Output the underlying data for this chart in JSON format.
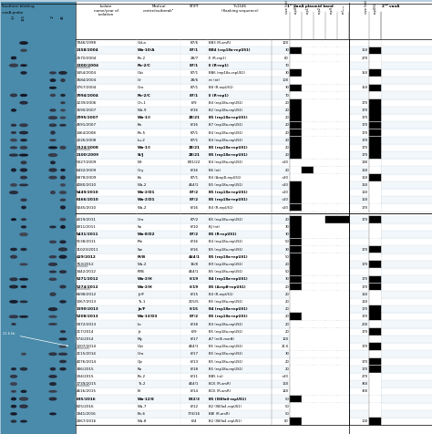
{
  "rows": [
    {
      "isolate": "7946/1998",
      "bold": false,
      "underline": false,
      "center": "Gd-a",
      "center_bold": false,
      "stpt": "87/6",
      "stpt_bold": false,
      "tn": "BB3 (R-arsR)",
      "tn_bold": false,
      "size1": "120",
      "rep_pattern": [
        0,
        0,
        0,
        0,
        0
      ],
      "size2": "",
      "rep2": 0
    },
    {
      "isolate": "2158/2004",
      "bold": true,
      "underline": false,
      "center": "Wa-10/A",
      "center_bold": true,
      "stpt": "87/1",
      "stpt_bold": true,
      "tn": "BB4 (rep18a-repUS1)",
      "tn_bold": true,
      "size1": "30",
      "rep_pattern": [
        1,
        0,
        0,
        0,
        0
      ],
      "size2": "150",
      "rep2": 1
    },
    {
      "isolate": "2570/2004",
      "bold": false,
      "underline": false,
      "center": "Po-2",
      "center_bold": false,
      "stpt": "28/7",
      "stpt_bold": false,
      "tn": "E (R-rep1)",
      "tn_bold": false,
      "size1": "80",
      "rep_pattern": [
        0,
        0,
        0,
        0,
        0
      ],
      "size2": "270",
      "rep2": 0
    },
    {
      "isolate": "3300/2004",
      "bold": true,
      "underline": true,
      "center": "Po-2/C",
      "center_bold": true,
      "stpt": "87/1",
      "stpt_bold": true,
      "tn": "E (R-rep1)",
      "tn_bold": true,
      "size1": "70",
      "rep_pattern": [
        0,
        0,
        0,
        0,
        0
      ],
      "size2": "",
      "rep2": 0
    },
    {
      "isolate": "3454/2004",
      "bold": false,
      "underline": false,
      "center": "Ost",
      "center_bold": false,
      "stpt": "87/1",
      "stpt_bold": false,
      "tn": "BB6 (rep18a-repUS1)",
      "tn_bold": false,
      "size1": "30",
      "rep_pattern": [
        1,
        0,
        0,
        0,
        0
      ],
      "size2": "150",
      "rep2": 1
    },
    {
      "isolate": "3584/2004",
      "bold": false,
      "underline": false,
      "center": "Gr",
      "center_bold": false,
      "stpt": "28/6",
      "stpt_bold": false,
      "tn": "nt (nt)",
      "tn_bold": false,
      "size1": "100",
      "rep_pattern": [
        0,
        0,
        0,
        0,
        0
      ],
      "size2": "",
      "rep2": 0
    },
    {
      "isolate": "3767/2004",
      "bold": false,
      "underline": false,
      "center": "Gro",
      "center_bold": false,
      "stpt": "87/1",
      "stpt_bold": false,
      "tn": "B8 (R-repUS1)",
      "tn_bold": false,
      "size1": "30",
      "rep_pattern": [
        1,
        0,
        0,
        0,
        0
      ],
      "size2": "150",
      "rep2": 1
    },
    {
      "isolate": "3994/2004",
      "bold": true,
      "underline": false,
      "center": "Po-2/C",
      "center_bold": true,
      "stpt": "87/1",
      "stpt_bold": true,
      "tn": "E (R-rep1)",
      "tn_bold": true,
      "size1": "70",
      "rep_pattern": [
        0,
        0,
        0,
        0,
        0
      ],
      "size2": "",
      "rep2": 0
    },
    {
      "isolate": "3239/2006",
      "bold": false,
      "underline": false,
      "center": "On-1",
      "center_bold": false,
      "stpt": "6/9",
      "stpt_bold": false,
      "tn": "B4 (rep18a-repUS1)",
      "tn_bold": false,
      "size1": "20",
      "rep_pattern": [
        1,
        0,
        0,
        0,
        0
      ],
      "size2": "170",
      "rep2": 1
    },
    {
      "isolate": "1590/2007",
      "bold": false,
      "underline": false,
      "center": "Wa-9",
      "center_bold": false,
      "stpt": "6/16",
      "stpt_bold": false,
      "tn": "B2 (rep18a-repUS1)",
      "tn_bold": false,
      "size1": "20",
      "rep_pattern": [
        1,
        0,
        0,
        0,
        0
      ],
      "size2": "170",
      "rep2": 1
    },
    {
      "isolate": "2995/2007",
      "bold": true,
      "underline": false,
      "center": "Wa-1/I",
      "center_bold": true,
      "stpt": "28/21",
      "stpt_bold": true,
      "tn": "B5 (rep18a-repUS1)",
      "tn_bold": true,
      "size1": "20",
      "rep_pattern": [
        1,
        0,
        0,
        0,
        0
      ],
      "size2": "170",
      "rep2": 1
    },
    {
      "isolate": "4591/2007",
      "bold": false,
      "underline": false,
      "center": "Ka",
      "center_bold": false,
      "stpt": "6/16",
      "stpt_bold": false,
      "tn": "B7 (rep18a-repUS1)",
      "tn_bold": false,
      "size1": "20",
      "rep_pattern": [
        1,
        0,
        0,
        0,
        0
      ],
      "size2": "170",
      "rep2": 1
    },
    {
      "isolate": "1464/2008",
      "bold": false,
      "underline": false,
      "center": "Po-5",
      "center_bold": false,
      "stpt": "87/1",
      "stpt_bold": false,
      "tn": "B4 (rep18a-repUS1)",
      "tn_bold": false,
      "size1": "20",
      "rep_pattern": [
        1,
        0,
        0,
        0,
        0
      ],
      "size2": "170",
      "rep2": 1
    },
    {
      "isolate": "2226/2008",
      "bold": false,
      "underline": false,
      "center": "Lu-2",
      "center_bold": false,
      "stpt": "87/1",
      "stpt_bold": false,
      "tn": "B4 (rep18a-repUS1)",
      "tn_bold": false,
      "size1": "20",
      "rep_pattern": [
        1,
        0,
        0,
        0,
        0
      ],
      "size2": "170",
      "rep2": 1
    },
    {
      "isolate": "3124/2008",
      "bold": true,
      "underline": true,
      "center": "Wa-1/I",
      "center_bold": true,
      "stpt": "28/21",
      "stpt_bold": true,
      "tn": "B5 (rep18a-repUS1)",
      "tn_bold": true,
      "size1": "20",
      "rep_pattern": [
        1,
        0,
        0,
        0,
        0
      ],
      "size2": "170",
      "rep2": 1
    },
    {
      "isolate": "2100/2009",
      "bold": true,
      "underline": false,
      "center": "Si/J",
      "center_bold": true,
      "stpt": "28/21",
      "stpt_bold": true,
      "tn": "B5 (rep18a-repUS1)",
      "tn_bold": true,
      "size1": "20",
      "rep_pattern": [
        1,
        0,
        0,
        0,
        0
      ],
      "size2": "170",
      "rep2": 1
    },
    {
      "isolate": "5027/2009",
      "bold": false,
      "underline": false,
      "center": "Wr",
      "center_bold": false,
      "stpt": "831/22",
      "stpt_bold": false,
      "tn": "B4 (rep18a-repUS1)",
      "tn_bold": false,
      "size1": "<20",
      "rep_pattern": [
        0,
        0,
        0,
        0,
        0
      ],
      "size2": "190",
      "rep2": 0
    },
    {
      "isolate": "6432/2009",
      "bold": false,
      "underline": false,
      "center": "Gry",
      "center_bold": false,
      "stpt": "6/16",
      "stpt_bold": false,
      "tn": "B6 (nt)",
      "tn_bold": false,
      "size1": "20",
      "rep_pattern": [
        0,
        1,
        0,
        0,
        0
      ],
      "size2": "160",
      "rep2": 0
    },
    {
      "isolate": "6878/2009",
      "bold": false,
      "underline": false,
      "center": "Ka",
      "center_bold": false,
      "stpt": "87/1",
      "stpt_bold": false,
      "tn": "B4 (ΔrepB-repUS1)",
      "tn_bold": false,
      "size1": "<20",
      "rep_pattern": [
        0,
        0,
        0,
        0,
        0
      ],
      "size2": "160",
      "rep2": 1
    },
    {
      "isolate": "4080/2010",
      "bold": false,
      "underline": false,
      "center": "Wa-2",
      "center_bold": false,
      "stpt": "464/1",
      "stpt_bold": false,
      "tn": "B5 (rep18a-repUS1)",
      "tn_bold": false,
      "size1": "<20",
      "rep_pattern": [
        1,
        0,
        0,
        0,
        0
      ],
      "size2": "160",
      "rep2": 0
    },
    {
      "isolate": "5449/2010",
      "bold": true,
      "underline": false,
      "center": "Wa-2/D1",
      "center_bold": true,
      "stpt": "87/2",
      "stpt_bold": true,
      "tn": "B5 (rep18a-repUS1)",
      "tn_bold": true,
      "size1": "<20",
      "rep_pattern": [
        1,
        0,
        0,
        0,
        0
      ],
      "size2": "160",
      "rep2": 0
    },
    {
      "isolate": "6166/2010",
      "bold": true,
      "underline": false,
      "center": "Wa-2/D1",
      "center_bold": true,
      "stpt": "87/2",
      "stpt_bold": true,
      "tn": "B5 (rep18a-repUS1)",
      "tn_bold": true,
      "size1": "<20",
      "rep_pattern": [
        1,
        0,
        0,
        0,
        0
      ],
      "size2": "160",
      "rep2": 0
    },
    {
      "isolate": "9245/2010",
      "bold": false,
      "underline": false,
      "center": "Wa-2",
      "center_bold": false,
      "stpt": "6/16",
      "stpt_bold": false,
      "tn": "B4 (R-repUS1)",
      "tn_bold": false,
      "size1": "<20",
      "rep_pattern": [
        1,
        0,
        0,
        0,
        0
      ],
      "size2": "170",
      "rep2": 0
    },
    {
      "isolate": "4319/2011",
      "bold": false,
      "underline": false,
      "center": "Gro",
      "center_bold": false,
      "stpt": "87/2",
      "stpt_bold": false,
      "tn": "B5 (rep18a-repUS1)",
      "tn_bold": false,
      "size1": "20",
      "rep_pattern": [
        1,
        0,
        0,
        1,
        1
      ],
      "size2": "170",
      "rep2": 1
    },
    {
      "isolate": "4911/2011",
      "bold": false,
      "underline": false,
      "center": "So",
      "center_bold": false,
      "stpt": "6/10",
      "stpt_bold": false,
      "tn": "BJ (nt)",
      "tn_bold": false,
      "size1": "30",
      "rep_pattern": [
        1,
        0,
        0,
        0,
        0
      ],
      "size2": "",
      "rep2": 0
    },
    {
      "isolate": "5431/2011",
      "bold": true,
      "underline": false,
      "center": "Wa-8/D2",
      "center_bold": true,
      "stpt": "87/2",
      "stpt_bold": true,
      "tn": "B5 (R-repUS1)",
      "tn_bold": true,
      "size1": "30",
      "rep_pattern": [
        1,
        0,
        0,
        0,
        0
      ],
      "size2": "",
      "rep2": 0
    },
    {
      "isolate": "9138/2011",
      "bold": false,
      "underline": false,
      "center": "Ple",
      "center_bold": false,
      "stpt": "6/16",
      "stpt_bold": false,
      "tn": "B4 (rep18a-repUS1)",
      "tn_bold": false,
      "size1": "50",
      "rep_pattern": [
        1,
        0,
        0,
        0,
        0
      ],
      "size2": "",
      "rep2": 0
    },
    {
      "isolate": "11023/2011",
      "bold": false,
      "underline": false,
      "center": "Sw",
      "center_bold": false,
      "stpt": "6/16",
      "stpt_bold": false,
      "tn": "B5 (rep18a-repUS1)",
      "tn_bold": false,
      "size1": "30",
      "rep_pattern": [
        1,
        0,
        0,
        0,
        0
      ],
      "size2": "170",
      "rep2": 1
    },
    {
      "isolate": "429/2012",
      "bold": true,
      "underline": false,
      "center": "Pl/B",
      "center_bold": true,
      "stpt": "464/1",
      "stpt_bold": true,
      "tn": "B5 (rep18a-repUS1)",
      "tn_bold": true,
      "size1": "50",
      "rep_pattern": [
        1,
        0,
        0,
        0,
        0
      ],
      "size2": "",
      "rep2": 0
    },
    {
      "isolate": "753/2012",
      "bold": false,
      "underline": true,
      "center": "Wa-2",
      "center_bold": false,
      "stpt": "16/8",
      "stpt_bold": false,
      "tn": "B9 (rep18a-repUS1)",
      "tn_bold": false,
      "size1": "20",
      "rep_pattern": [
        1,
        0,
        0,
        0,
        0
      ],
      "size2": "170",
      "rep2": 1
    },
    {
      "isolate": "3442/2012",
      "bold": false,
      "underline": false,
      "center": "Pl/B",
      "center_bold": false,
      "stpt": "464/1",
      "stpt_bold": false,
      "tn": "B5 (rep18a-repUS1)",
      "tn_bold": false,
      "size1": "50",
      "rep_pattern": [
        1,
        0,
        0,
        0,
        0
      ],
      "size2": "",
      "rep2": 0
    },
    {
      "isolate": "5271/2012",
      "bold": true,
      "underline": false,
      "center": "Wa-2/H",
      "center_bold": true,
      "stpt": "6/19",
      "stpt_bold": true,
      "tn": "B4 (rep18a-repUS1)",
      "tn_bold": true,
      "size1": "30",
      "rep_pattern": [
        1,
        0,
        0,
        0,
        0
      ],
      "size2": "170",
      "rep2": 1
    },
    {
      "isolate": "5274/2012",
      "bold": true,
      "underline": true,
      "center": "Wa-2/H",
      "center_bold": true,
      "stpt": "6/19",
      "stpt_bold": true,
      "tn": "B5 (ΔrepB-repUS1)",
      "tn_bold": true,
      "size1": "20",
      "rep_pattern": [
        1,
        0,
        0,
        0,
        0
      ],
      "size2": "170",
      "rep2": 1
    },
    {
      "isolate": "6698/2012",
      "bold": false,
      "underline": false,
      "center": "Je/F",
      "center_bold": false,
      "stpt": "6/15",
      "stpt_bold": false,
      "tn": "B4 (R-repUS1)",
      "tn_bold": false,
      "size1": "20",
      "rep_pattern": [
        0,
        0,
        0,
        0,
        0
      ],
      "size2": "160",
      "rep2": 0
    },
    {
      "isolate": "1067/2013",
      "bold": false,
      "underline": false,
      "center": "To-1",
      "center_bold": false,
      "stpt": "215/5",
      "stpt_bold": false,
      "tn": "B5 (rep18a-repUS1)",
      "tn_bold": false,
      "size1": "20",
      "rep_pattern": [
        0,
        0,
        0,
        0,
        0
      ],
      "size2": "160",
      "rep2": 0
    },
    {
      "isolate": "1390/2013",
      "bold": true,
      "underline": false,
      "center": "Je/F",
      "center_bold": true,
      "stpt": "6/15",
      "stpt_bold": true,
      "tn": "B4 (rep18a-repUS1)",
      "tn_bold": true,
      "size1": "20",
      "rep_pattern": [
        0,
        0,
        0,
        0,
        0
      ],
      "size2": "170",
      "rep2": 1
    },
    {
      "isolate": "5208/2013",
      "bold": true,
      "underline": false,
      "center": "Wa-13/D3",
      "center_bold": true,
      "stpt": "87/2",
      "stpt_bold": true,
      "tn": "B5 (rep18a-repUS1)",
      "tn_bold": true,
      "size1": "20",
      "rep_pattern": [
        1,
        0,
        0,
        0,
        0
      ],
      "size2": "170",
      "rep2": 1
    },
    {
      "isolate": "5972/2013",
      "bold": false,
      "underline": false,
      "center": "Lo",
      "center_bold": false,
      "stpt": "6/18",
      "stpt_bold": false,
      "tn": "B4 (rep18a-repUS1)",
      "tn_bold": false,
      "size1": "20",
      "rep_pattern": [
        0,
        0,
        0,
        0,
        0
      ],
      "size2": "200",
      "rep2": 0
    },
    {
      "isolate": "217/2014",
      "bold": false,
      "underline": false,
      "center": "Je",
      "center_bold": false,
      "stpt": "6/9",
      "stpt_bold": false,
      "tn": "B5 (rep18a-repUS1)",
      "tn_bold": false,
      "size1": "20",
      "rep_pattern": [
        0,
        0,
        0,
        0,
        0
      ],
      "size2": "170",
      "rep2": 1
    },
    {
      "isolate": "574/2014",
      "bold": false,
      "underline": false,
      "center": "My",
      "center_bold": false,
      "stpt": "6/17",
      "stpt_bold": false,
      "tn": "A7 (relE-merA)",
      "tn_bold": false,
      "size1": "120",
      "rep_pattern": [
        0,
        0,
        0,
        0,
        0
      ],
      "size2": "",
      "rep2": 0
    },
    {
      "isolate": "1207/2014",
      "bold": false,
      "underline": true,
      "center": "Ost",
      "center_bold": false,
      "stpt": "464/1",
      "stpt_bold": false,
      "tn": "B5 (rep18a-repUS1)",
      "tn_bold": false,
      "size1": "21.6",
      "rep_pattern": [
        0,
        0,
        0,
        0,
        0
      ],
      "size2": "170",
      "rep2": 1
    },
    {
      "isolate": "2115/2014",
      "bold": false,
      "underline": false,
      "center": "Gro",
      "center_bold": false,
      "stpt": "6/17",
      "stpt_bold": false,
      "tn": "B5 (rep18a-repUS1)",
      "tn_bold": false,
      "size1": "30",
      "rep_pattern": [
        0,
        0,
        0,
        0,
        0
      ],
      "size2": "",
      "rep2": 0
    },
    {
      "isolate": "4076/2014",
      "bold": false,
      "underline": false,
      "center": "Op",
      "center_bold": false,
      "stpt": "6/13",
      "stpt_bold": false,
      "tn": "B5 (rep18a-repUS1)",
      "tn_bold": false,
      "size1": "20",
      "rep_pattern": [
        0,
        0,
        0,
        0,
        0
      ],
      "size2": "170",
      "rep2": 1
    },
    {
      "isolate": "306/2015",
      "bold": false,
      "underline": false,
      "center": "Rz",
      "center_bold": false,
      "stpt": "6/18",
      "stpt_bold": false,
      "tn": "B5 (rep18a-repUS1)",
      "tn_bold": false,
      "size1": "20",
      "rep_pattern": [
        0,
        0,
        0,
        0,
        0
      ],
      "size2": "170",
      "rep2": 1
    },
    {
      "isolate": "334/2015",
      "bold": false,
      "underline": false,
      "center": "Po-2",
      "center_bold": false,
      "stpt": "6/11",
      "stpt_bold": false,
      "tn": "BB5 (nt)",
      "tn_bold": false,
      "size1": "<20",
      "rep_pattern": [
        0,
        0,
        0,
        0,
        0
      ],
      "size2": "270",
      "rep2": 0
    },
    {
      "isolate": "1739/2015",
      "bold": false,
      "underline": true,
      "center": "To-2",
      "center_bold": false,
      "stpt": "464/1",
      "stpt_bold": false,
      "tn": "BC6 (R-arsR)",
      "tn_bold": false,
      "size1": "160",
      "rep_pattern": [
        0,
        0,
        0,
        0,
        0
      ],
      "size2": "360",
      "rep2": 0
    },
    {
      "isolate": "4616/2015",
      "bold": false,
      "underline": false,
      "center": "El",
      "center_bold": false,
      "stpt": "6/14",
      "stpt_bold": false,
      "tn": "BC6 (R-arsR)",
      "tn_bold": false,
      "size1": "140",
      "rep_pattern": [
        0,
        0,
        0,
        0,
        0
      ],
      "size2": "300",
      "rep2": 0
    },
    {
      "isolate": "635/2016",
      "bold": true,
      "underline": false,
      "center": "Wa-12/E",
      "center_bold": true,
      "stpt": "832/3",
      "stpt_bold": true,
      "tn": "B5 (ISEfa4-repUS1)",
      "tn_bold": true,
      "size1": "50",
      "rep_pattern": [
        1,
        0,
        0,
        0,
        0
      ],
      "size2": "",
      "rep2": 0
    },
    {
      "isolate": "825/2016",
      "bold": false,
      "underline": false,
      "center": "Wa-7",
      "center_bold": false,
      "stpt": "6/12",
      "stpt_bold": false,
      "tn": "B2 (ISEfa4-repUS1)",
      "tn_bold": false,
      "size1": "50",
      "rep_pattern": [
        0,
        0,
        0,
        0,
        0
      ],
      "size2": "",
      "rep2": 0
    },
    {
      "isolate": "1941/2016",
      "bold": false,
      "underline": false,
      "center": "Po-6",
      "center_bold": false,
      "stpt": "774/16",
      "stpt_bold": false,
      "tn": "BBl (R-arsR)",
      "tn_bold": false,
      "size1": "50",
      "rep_pattern": [
        0,
        0,
        0,
        0,
        0
      ],
      "size2": "",
      "rep2": 0
    },
    {
      "isolate": "2067/2016",
      "bold": false,
      "underline": false,
      "center": "Wa-8",
      "center_bold": false,
      "stpt": "6/4",
      "stpt_bold": false,
      "tn": "B2 (ISEfa4-repUS1)",
      "tn_bold": false,
      "size1": "80",
      "rep_pattern": [
        1,
        0,
        0,
        0,
        0
      ],
      "size2": "100",
      "rep2": 1
    }
  ],
  "section_break_after": 22,
  "bg_color": "#b8cfe0",
  "gel_color": "#4a8aaa",
  "white": "#ffffff",
  "light_blue": "#d0e4f0"
}
